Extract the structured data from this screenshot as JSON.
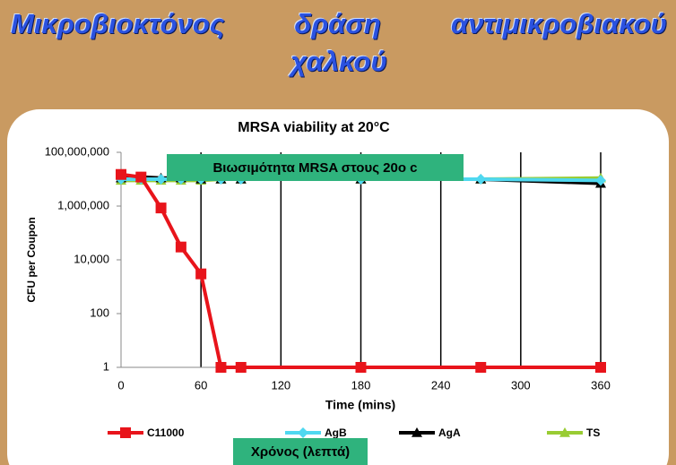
{
  "slide_title": [
    "Μικροβιοκτόνος δράση αντιμικροβιακού",
    "χαλκού"
  ],
  "chart_data": {
    "type": "line",
    "title": "MRSA viability at 20°C",
    "x_label": "Time (mins)",
    "y_label": "CFU per Coupon",
    "x": [
      0,
      15,
      30,
      45,
      60,
      75,
      90,
      180,
      270,
      360
    ],
    "series": [
      {
        "name": "C11000",
        "color": "#e8141b",
        "marker": "square",
        "values": [
          15000000,
          12000000,
          850000,
          30000,
          3000,
          1,
          1,
          1,
          1,
          1
        ]
      },
      {
        "name": "AgB",
        "color": "#4fd8f0",
        "marker": "diamond",
        "values": [
          10000000,
          10000000,
          10000000,
          10000000,
          10000000,
          10000000,
          10000000,
          10000000,
          10000000,
          9000000
        ]
      },
      {
        "name": "AgA",
        "color": "#000000",
        "marker": "triangle",
        "values": [
          11000000,
          12000000,
          11000000,
          11000000,
          10000000,
          10000000,
          10000000,
          10000000,
          10000000,
          7000000
        ]
      },
      {
        "name": "TS",
        "color": "#99cc33",
        "marker": "triangle",
        "values": [
          9000000,
          9000000,
          9000000,
          9000000,
          9000000,
          10000000,
          10000000,
          10000000,
          10000000,
          11000000
        ]
      }
    ],
    "xlim": [
      0,
      360
    ],
    "xticks": [
      0,
      60,
      120,
      180,
      240,
      300,
      360
    ],
    "ylim": [
      1,
      100000000
    ],
    "yscale": "log",
    "yticks": [
      1,
      100,
      {
        "value": 10000,
        "label": "10,000"
      },
      {
        "value": 1000000,
        "label": "1,000,000"
      },
      {
        "value": 100000000,
        "label": "100,000,000"
      }
    ],
    "grid": "x",
    "annotations": [
      "Βιωσιμότητα  MRSA στους 20ο c",
      "Χρόνος (λεπτά)"
    ]
  }
}
